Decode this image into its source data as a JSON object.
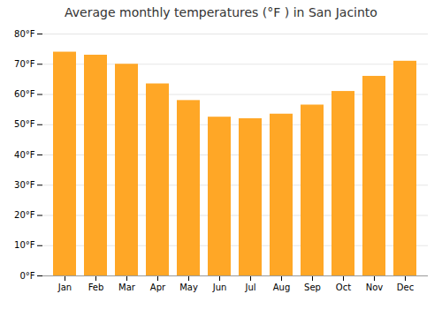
{
  "chart_data": {
    "type": "bar",
    "title": "Average monthly temperatures (°F ) in San Jacinto",
    "categories": [
      "Jan",
      "Feb",
      "Mar",
      "Apr",
      "May",
      "Jun",
      "Jul",
      "Aug",
      "Sep",
      "Oct",
      "Nov",
      "Dec"
    ],
    "values": [
      74,
      73,
      70,
      63.5,
      58,
      52.5,
      52,
      53.5,
      56.5,
      61,
      66,
      71
    ],
    "color": "#FFA726",
    "ylim": [
      0,
      80
    ],
    "yticks": [
      {
        "value": 0,
        "label": "0°F"
      },
      {
        "value": 10,
        "label": "10°F"
      },
      {
        "value": 20,
        "label": "20°F"
      },
      {
        "value": 30,
        "label": "30°F"
      },
      {
        "value": 40,
        "label": "40°F"
      },
      {
        "value": 50,
        "label": "50°F"
      },
      {
        "value": 60,
        "label": "60°F"
      },
      {
        "value": 70,
        "label": "70°F"
      },
      {
        "value": 80,
        "label": "80°F"
      }
    ],
    "grid": true
  }
}
